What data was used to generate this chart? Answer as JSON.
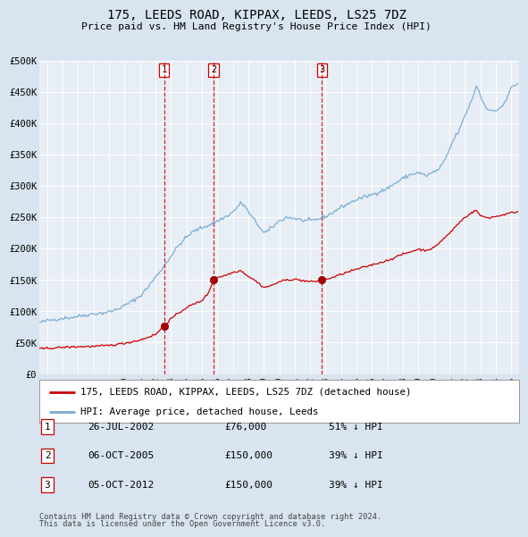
{
  "title": "175, LEEDS ROAD, KIPPAX, LEEDS, LS25 7DZ",
  "subtitle": "Price paid vs. HM Land Registry's House Price Index (HPI)",
  "hpi_color": "#7aadd4",
  "sold_color": "#cc0000",
  "background_color": "#d8e4ef",
  "plot_bg_color": "#e8eef5",
  "grid_color": "#ffffff",
  "ylim": [
    0,
    500000
  ],
  "yticks": [
    0,
    50000,
    100000,
    150000,
    200000,
    250000,
    300000,
    350000,
    400000,
    450000,
    500000
  ],
  "ytick_labels": [
    "£0",
    "£50K",
    "£100K",
    "£150K",
    "£200K",
    "£250K",
    "£300K",
    "£350K",
    "£400K",
    "£450K",
    "£500K"
  ],
  "xlim_start": 1994.5,
  "xlim_end": 2025.5,
  "xticks": [
    1995,
    1996,
    1997,
    1998,
    1999,
    2000,
    2001,
    2002,
    2003,
    2004,
    2005,
    2006,
    2007,
    2008,
    2009,
    2010,
    2011,
    2012,
    2013,
    2014,
    2015,
    2016,
    2017,
    2018,
    2019,
    2020,
    2021,
    2022,
    2023,
    2024,
    2025
  ],
  "sale_events": [
    {
      "label": "1",
      "date_num": 2002.56,
      "price": 76000,
      "text": "26-JUL-2002",
      "amount": "£76,000",
      "pct": "51% ↓ HPI"
    },
    {
      "label": "2",
      "date_num": 2005.76,
      "price": 150000,
      "text": "06-OCT-2005",
      "amount": "£150,000",
      "pct": "39% ↓ HPI"
    },
    {
      "label": "3",
      "date_num": 2012.76,
      "price": 150000,
      "text": "05-OCT-2012",
      "amount": "£150,000",
      "pct": "39% ↓ HPI"
    }
  ],
  "legend_sold_label": "175, LEEDS ROAD, KIPPAX, LEEDS, LS25 7DZ (detached house)",
  "legend_hpi_label": "HPI: Average price, detached house, Leeds",
  "footer_line1": "Contains HM Land Registry data © Crown copyright and database right 2024.",
  "footer_line2": "This data is licensed under the Open Government Licence v3.0."
}
